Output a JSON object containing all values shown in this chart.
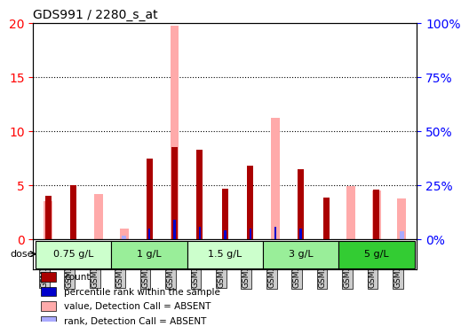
{
  "title": "GDS991 / 2280_s_at",
  "samples": [
    "GSM34752",
    "GSM34753",
    "GSM34754",
    "GSM34764",
    "GSM34765",
    "GSM34766",
    "GSM34761",
    "GSM34762",
    "GSM34763",
    "GSM34755",
    "GSM34756",
    "GSM34757",
    "GSM34758",
    "GSM34759",
    "GSM34760"
  ],
  "count_values": [
    4.0,
    5.0,
    0.0,
    0.0,
    7.5,
    8.5,
    8.3,
    4.7,
    6.8,
    0.0,
    6.5,
    3.9,
    0.0,
    4.6,
    0.0
  ],
  "rank_values": [
    0.0,
    0.0,
    0.0,
    0.0,
    5.2,
    9.0,
    5.8,
    4.1,
    5.2,
    6.0,
    5.0,
    0.0,
    0.0,
    0.0,
    0.0
  ],
  "absent_value_values": [
    3.5,
    0.0,
    4.2,
    1.0,
    0.0,
    19.7,
    0.0,
    0.0,
    0.0,
    11.2,
    0.0,
    0.0,
    4.9,
    4.5,
    3.8
  ],
  "absent_rank_values": [
    4.2,
    0.0,
    0.0,
    1.7,
    0.0,
    0.0,
    0.0,
    0.0,
    0.0,
    0.0,
    0.0,
    0.0,
    0.0,
    4.3,
    3.9
  ],
  "doses": [
    {
      "label": "0.75 g/L",
      "samples": [
        "GSM34752",
        "GSM34753",
        "GSM34754"
      ]
    },
    {
      "label": "1 g/L",
      "samples": [
        "GSM34764",
        "GSM34765",
        "GSM34766"
      ]
    },
    {
      "label": "1.5 g/L",
      "samples": [
        "GSM34761",
        "GSM34762",
        "GSM34763"
      ]
    },
    {
      "label": "3 g/L",
      "samples": [
        "GSM34755",
        "GSM34756",
        "GSM34757"
      ]
    },
    {
      "label": "5 g/L",
      "samples": [
        "GSM34758",
        "GSM34759",
        "GSM34760"
      ]
    }
  ],
  "dose_colors": [
    "#ccffcc",
    "#99ee99",
    "#ccffcc",
    "#99ee99",
    "#33cc33"
  ],
  "ylim_left": [
    0,
    20
  ],
  "ylim_right": [
    0,
    100
  ],
  "yticks_left": [
    0,
    5,
    10,
    15,
    20
  ],
  "yticks_right": [
    0,
    25,
    50,
    75,
    100
  ],
  "color_count": "#aa0000",
  "color_rank": "#0000cc",
  "color_absent_value": "#ffaaaa",
  "color_absent_rank": "#aaaaff",
  "bg_plot": "#ffffff",
  "bg_sample_label": "#cccccc",
  "grid_color": "#000000",
  "bar_width": 0.35
}
